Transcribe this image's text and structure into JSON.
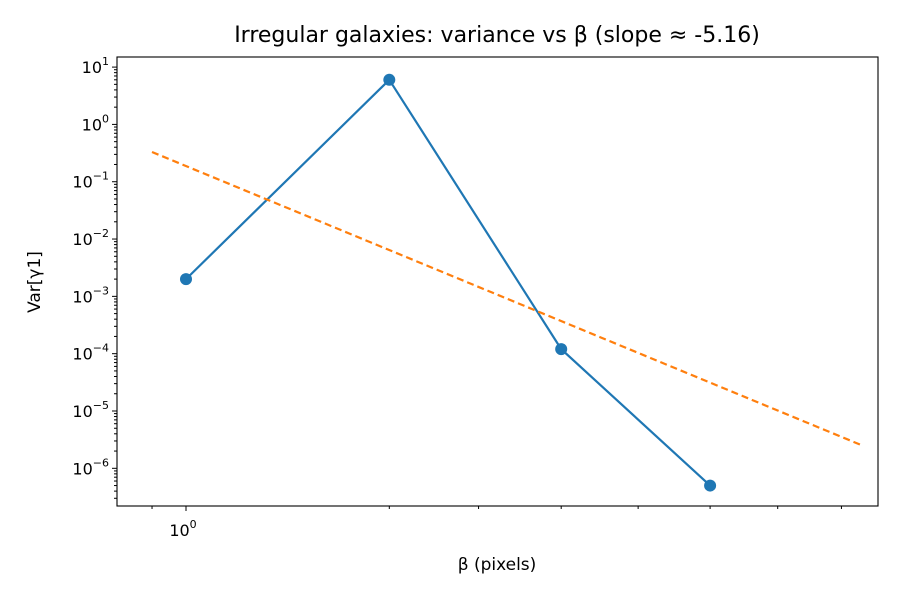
{
  "chart_data": {
    "type": "line",
    "title": "Irregular galaxies: variance vs β (slope ≈ -5.16)",
    "xlabel": "β (pixels)",
    "ylabel": "Var[γ1]",
    "xscale": "log",
    "yscale": "log",
    "xlim": [
      0.94,
      1.86
    ],
    "ylim": [
      2.2e-07,
      15
    ],
    "x_ticks": [
      {
        "base": "10",
        "exp": "0",
        "value": 1
      }
    ],
    "y_ticks": [
      {
        "base": "10",
        "exp": "1",
        "value": 10
      },
      {
        "base": "10",
        "exp": "0",
        "value": 1
      },
      {
        "base": "10",
        "exp": "−1",
        "value": 0.1
      },
      {
        "base": "10",
        "exp": "−2",
        "value": 0.01
      },
      {
        "base": "10",
        "exp": "−3",
        "value": 0.001
      },
      {
        "base": "10",
        "exp": "−4",
        "value": 0.0001
      },
      {
        "base": "10",
        "exp": "−5",
        "value": 1e-05
      },
      {
        "base": "10",
        "exp": "−6",
        "value": 1e-06
      }
    ],
    "x_minor_ticks": [
      1.2,
      1.3,
      1.4,
      1.5,
      1.6,
      1.7,
      1.8
    ],
    "grid": false,
    "series": [
      {
        "color": "#1f77b4",
        "style": "solid-with-markers",
        "x": [
          1.0,
          1.2,
          1.4,
          1.6
        ],
        "y": [
          0.002,
          6.0,
          0.00012,
          5e-07
        ]
      },
      {
        "color": "#ff7f0e",
        "style": "dashed",
        "x": [
          0.97,
          1.83
        ],
        "y": [
          0.33,
          2.6e-06
        ]
      }
    ]
  }
}
